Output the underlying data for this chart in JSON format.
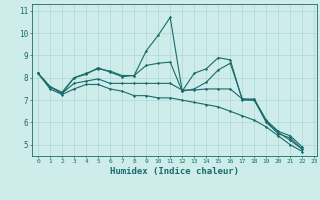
{
  "xlabel": "Humidex (Indice chaleur)",
  "bg_color": "#cdecea",
  "line_color": "#1a6b6b",
  "grid_color": "#aed8d5",
  "xlim": [
    -0.5,
    23.2
  ],
  "ylim": [
    4.5,
    11.3
  ],
  "xticks": [
    0,
    1,
    2,
    3,
    4,
    5,
    6,
    7,
    8,
    9,
    10,
    11,
    12,
    13,
    14,
    15,
    16,
    17,
    18,
    19,
    20,
    21,
    22,
    23
  ],
  "yticks": [
    5,
    6,
    7,
    8,
    9,
    10,
    11
  ],
  "line1_y": [
    8.2,
    7.6,
    7.3,
    8.0,
    8.2,
    8.4,
    8.3,
    8.1,
    8.1,
    9.2,
    9.9,
    10.7,
    7.4,
    8.2,
    8.4,
    8.9,
    8.8,
    7.0,
    7.0,
    6.0,
    5.5,
    5.3,
    4.8
  ],
  "line2_y": [
    8.2,
    7.6,
    7.35,
    8.0,
    8.15,
    8.45,
    8.25,
    8.05,
    8.1,
    8.55,
    8.65,
    8.7,
    7.4,
    7.5,
    7.8,
    8.35,
    8.65,
    7.05,
    7.0,
    6.05,
    5.55,
    5.2,
    4.8
  ],
  "line3_y": [
    8.2,
    7.6,
    7.3,
    7.75,
    7.85,
    7.95,
    7.75,
    7.75,
    7.75,
    7.75,
    7.75,
    7.75,
    7.45,
    7.45,
    7.5,
    7.5,
    7.5,
    7.05,
    7.05,
    6.1,
    5.6,
    5.4,
    4.9
  ],
  "line4_y": [
    8.2,
    7.5,
    7.25,
    7.5,
    7.7,
    7.7,
    7.5,
    7.4,
    7.2,
    7.2,
    7.1,
    7.1,
    7.0,
    6.9,
    6.8,
    6.7,
    6.5,
    6.3,
    6.1,
    5.8,
    5.4,
    5.0,
    4.7
  ]
}
